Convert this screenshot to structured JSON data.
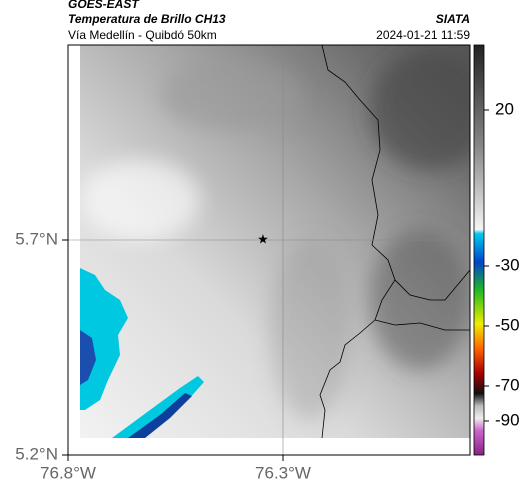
{
  "header": {
    "satellite": "GOES-EAST",
    "product": "Temperatura de Brillo CH13",
    "region": "Vía Medellín - Quibdó 50km",
    "source": "SIATA",
    "datetime": "2024-01-21 11:59"
  },
  "map_axes": {
    "lat_ticks": [
      "5.7°N",
      "5.2°N"
    ],
    "lon_ticks": [
      "76.8°W",
      "76.3°W"
    ]
  },
  "colorbar": {
    "ticks": [
      "20",
      "-30",
      "-50",
      "-70",
      "-90"
    ]
  }
}
